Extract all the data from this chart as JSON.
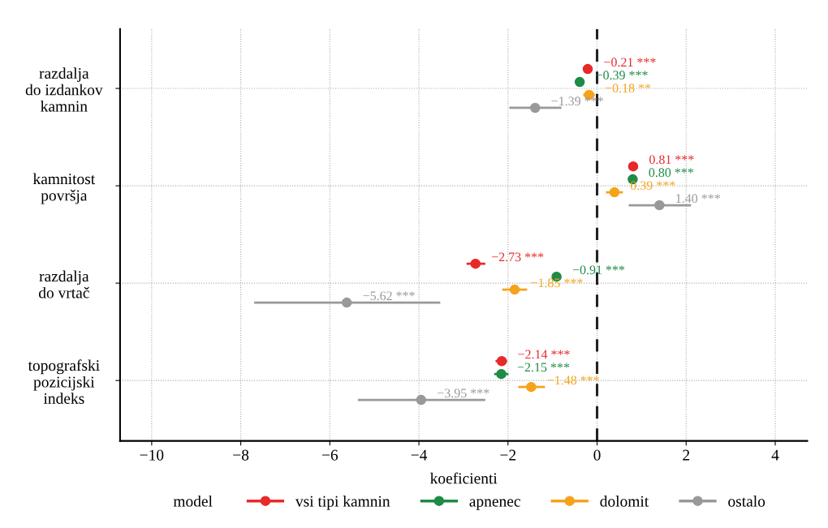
{
  "chart_data": {
    "type": "scatter",
    "orientation": "horizontal",
    "xlabel": "koeficienti",
    "legend_title": "model",
    "legend": "bottom",
    "grid": true,
    "marker": "circle",
    "categories": [
      "razdalja\ndo izdankov\nkamnin",
      "kamnitost\npovršja",
      "razdalja\ndo vrtač",
      "topografski\npozicijski\nindeks"
    ],
    "xlim": [
      -10.71,
      4.72
    ],
    "xticks": [
      {
        "value": -10,
        "label": "−10"
      },
      {
        "value": -8,
        "label": "−8"
      },
      {
        "value": -6,
        "label": "−6"
      },
      {
        "value": -4,
        "label": "−4"
      },
      {
        "value": -2,
        "label": "−2"
      },
      0,
      2,
      4
    ],
    "ref_lines": [
      {
        "axis": "x",
        "value": 0,
        "color": "#222222",
        "line_style": "dashed"
      }
    ],
    "series": [
      {
        "name": "vsi tipi kamnin",
        "color": "#e8292a",
        "values": [
          -0.21,
          0.81,
          -2.73,
          -2.14
        ],
        "errors": [
          null,
          null,
          [
            -2.93,
            -2.51
          ],
          [
            -2.28,
            -2.02
          ]
        ],
        "value_labels": [
          "−0.21 ***",
          "0.81 ***",
          "−2.73 ***",
          "−2.14 ***"
        ]
      },
      {
        "name": "apnenec",
        "color": "#1e8b46",
        "values": [
          -0.39,
          0.8,
          -0.91,
          -2.15
        ],
        "errors": [
          null,
          null,
          null,
          [
            -2.31,
            -1.99
          ]
        ],
        "value_labels": [
          "−0.39 ***",
          "0.80 ***",
          "−0.91 ***",
          "−2.15 ***"
        ]
      },
      {
        "name": "dolomit",
        "color": "#f5a31b",
        "values": [
          -0.18,
          0.39,
          -1.85,
          -1.48
        ],
        "errors": [
          [
            -0.31,
            -0.05
          ],
          [
            0.2,
            0.58
          ],
          [
            -2.13,
            -1.57
          ],
          [
            -1.77,
            -1.17
          ]
        ],
        "value_labels": [
          "−0.18 **",
          "0.39 ***",
          "−1.85 ***",
          "−1.48 ***"
        ]
      },
      {
        "name": "ostalo",
        "color": "#999999",
        "values": [
          -1.39,
          1.4,
          -5.62,
          -3.95
        ],
        "errors": [
          [
            -1.97,
            -0.8
          ],
          [
            0.71,
            2.11
          ],
          [
            -7.7,
            -3.52
          ],
          [
            -5.37,
            -2.51
          ]
        ],
        "value_labels": [
          "−1.39 ***",
          "1.40 ***",
          "−5.62 ***",
          "−3.95 ***"
        ]
      }
    ]
  }
}
